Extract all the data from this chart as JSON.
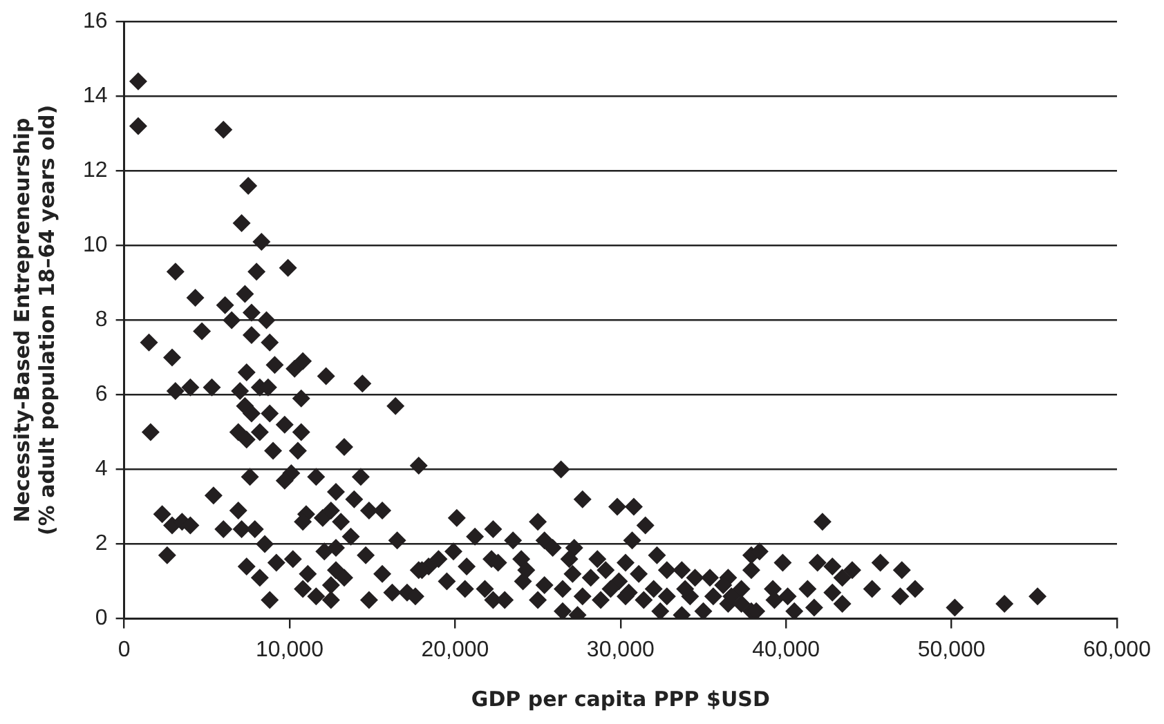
{
  "chart_data": {
    "type": "scatter",
    "xlabel": "GDP per capita PPP $USD",
    "ylabel": "Necessity-Based Entrepreneurship\n(% adult population 18–64 years old)",
    "xlim": [
      0,
      60000
    ],
    "xticks": [
      0,
      {
        "value": 10000,
        "label": "10,000"
      },
      {
        "value": 20000,
        "label": "20,000"
      },
      {
        "value": 30000,
        "label": "30,000"
      },
      {
        "value": 40000,
        "label": "40,000"
      },
      {
        "value": 50000,
        "label": "50,000"
      },
      {
        "value": 60000,
        "label": "60,000"
      }
    ],
    "ylim": [
      0,
      16
    ],
    "yticks": [
      0,
      2,
      4,
      6,
      8,
      10,
      12,
      14,
      16
    ],
    "grid": "y",
    "legend": false,
    "marker": "diamond",
    "series": [
      {
        "color": "#231f20",
        "x": [
          850,
          850,
          6000,
          7500,
          7100,
          8300,
          3100,
          9900,
          8000,
          4300,
          7300,
          6100,
          7700,
          8600,
          6500,
          4700,
          1500,
          8800,
          7700,
          2900,
          7400,
          9100,
          10300,
          10800,
          12200,
          14400,
          3100,
          4000,
          5300,
          8200,
          8700,
          7000,
          7300,
          7700,
          8800,
          9700,
          10700,
          16400,
          1600,
          6900,
          7400,
          8200,
          10700,
          9000,
          10500,
          13300,
          17800,
          7600,
          10100,
          9700,
          11600,
          14300,
          5400,
          12800,
          13900,
          2300,
          2900,
          3500,
          4000,
          6900,
          6000,
          7100,
          7900,
          11000,
          10800,
          12000,
          12500,
          13100,
          14800,
          15600,
          13700,
          16500,
          8500,
          2600,
          12100,
          12800,
          14600,
          7400,
          9200,
          10200,
          11100,
          12800,
          13300,
          15600,
          17800,
          18400,
          8200,
          10800,
          12500,
          16200,
          17100,
          17600,
          8800,
          11600,
          12500,
          14800,
          26400,
          27700,
          29800,
          30800,
          20100,
          21200,
          22300,
          25000,
          23500,
          25400,
          25900,
          31500,
          30700,
          27200,
          19900,
          19000,
          18000,
          20700,
          22200,
          22600,
          24000,
          24300,
          32200,
          30300,
          37900,
          19500,
          20600,
          21800,
          22300,
          23000,
          24100,
          25000,
          25400,
          26500,
          27400,
          27100,
          28200,
          29100,
          29900,
          31100,
          32000,
          32800,
          33700,
          34500,
          35400,
          36500,
          37300,
          27700,
          28800,
          30300,
          31400,
          32400,
          33700,
          35000,
          36500,
          37900,
          26900,
          28600,
          30500,
          32800,
          34200,
          35600,
          26500,
          29400,
          33900,
          36700,
          42200,
          38400,
          37900,
          39800,
          41900,
          42800,
          44000,
          45700,
          47000,
          43400,
          45200,
          46900,
          47800,
          39200,
          40100,
          41300,
          42800,
          43400,
          41700,
          40500,
          36200,
          38200,
          37300,
          39300,
          50200,
          53200,
          55200
        ],
        "values": [
          14.4,
          13.2,
          13.1,
          11.6,
          10.6,
          10.1,
          9.3,
          9.4,
          9.3,
          8.6,
          8.7,
          8.4,
          8.2,
          8.0,
          8.0,
          7.7,
          7.4,
          7.4,
          7.6,
          7.0,
          6.6,
          6.8,
          6.7,
          6.9,
          6.5,
          6.3,
          6.1,
          6.2,
          6.2,
          6.2,
          6.2,
          6.1,
          5.7,
          5.5,
          5.5,
          5.2,
          5.9,
          5.7,
          5.0,
          5.0,
          4.8,
          5.0,
          5.0,
          4.5,
          4.5,
          4.6,
          4.1,
          3.8,
          3.9,
          3.7,
          3.8,
          3.8,
          3.3,
          3.4,
          3.2,
          2.8,
          2.5,
          2.6,
          2.5,
          2.9,
          2.4,
          2.4,
          2.4,
          2.8,
          2.6,
          2.7,
          2.9,
          2.6,
          2.9,
          2.9,
          2.2,
          2.1,
          2.0,
          1.7,
          1.8,
          1.9,
          1.7,
          1.4,
          1.5,
          1.6,
          1.2,
          1.3,
          1.1,
          1.2,
          1.3,
          1.4,
          1.1,
          0.8,
          0.9,
          0.7,
          0.7,
          0.6,
          0.5,
          0.6,
          0.5,
          0.5,
          4.0,
          3.2,
          3.0,
          3.0,
          2.7,
          2.2,
          2.4,
          2.6,
          2.1,
          2.1,
          1.9,
          2.5,
          2.1,
          1.9,
          1.8,
          1.6,
          1.3,
          1.4,
          1.6,
          1.5,
          1.6,
          1.3,
          1.7,
          1.5,
          1.7,
          1.0,
          0.8,
          0.8,
          0.5,
          0.5,
          1.0,
          0.5,
          0.9,
          0.2,
          0.1,
          1.2,
          1.1,
          1.3,
          1.0,
          1.2,
          0.8,
          1.3,
          1.3,
          1.1,
          1.1,
          1.1,
          0.8,
          0.6,
          0.5,
          0.6,
          0.5,
          0.2,
          0.1,
          0.2,
          0.4,
          0.2,
          1.6,
          1.6,
          0.7,
          0.6,
          0.6,
          0.6,
          0.8,
          0.8,
          0.8,
          0.6,
          2.6,
          1.8,
          1.3,
          1.5,
          1.5,
          1.4,
          1.3,
          1.5,
          1.3,
          1.1,
          0.8,
          0.6,
          0.8,
          0.8,
          0.6,
          0.8,
          0.7,
          0.4,
          0.3,
          0.2,
          0.9,
          0.2,
          0.4,
          0.5,
          0.3,
          0.4,
          0.6
        ]
      }
    ]
  }
}
